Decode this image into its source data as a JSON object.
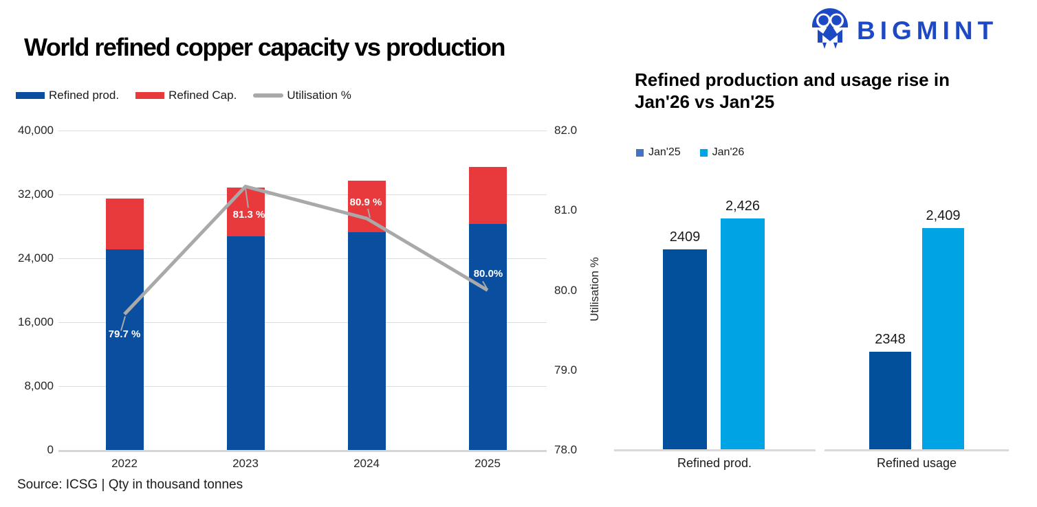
{
  "page": {
    "source_note": "Source: ICSG | Qty in thousand tonnes"
  },
  "brand": {
    "name": "BIGMINT",
    "color": "#1D49C4",
    "icon": "bigmint-people-m-logo"
  },
  "right_chart": {
    "title_line1": "Refined production and usage rise in",
    "title_line2": "Jan'26 vs Jan'25"
  },
  "chart_data": [
    {
      "id": "world-refined-copper-capacity-vs-production",
      "type": "bar",
      "subtype": "stacked-bar-with-line",
      "title": "World refined copper capacity vs production",
      "unit": "thousand tonnes",
      "categories": [
        "2022",
        "2023",
        "2024",
        "2025"
      ],
      "series": [
        {
          "name": "Refined prod.",
          "role": "bar-bottom-segment",
          "color": "#0A4EA0",
          "values": [
            25100,
            26750,
            27250,
            28300
          ]
        },
        {
          "name": "Refined Cap.",
          "role": "bar-top-segment",
          "color": "#E8393C",
          "values": [
            31500,
            32900,
            33700,
            35400
          ],
          "note": "values are total capacity; red segment height = capacity minus production (estimated from chart)"
        },
        {
          "name": "Utilisation %",
          "role": "line",
          "color": "#A9A9A9",
          "axis": "right",
          "values": [
            79.7,
            81.3,
            80.9,
            80.0
          ],
          "point_labels": [
            "79.7 %",
            "81.3 %",
            "80.9 %",
            "80.0%"
          ]
        }
      ],
      "left_axis": {
        "min": 0,
        "max": 40000,
        "ticks": [
          "40,000",
          "32,000",
          "24,000",
          "16,000",
          "8,000",
          "0"
        ]
      },
      "right_axis": {
        "label": "Utilisation %",
        "min": 78.0,
        "max": 82.0,
        "ticks": [
          "82.0",
          "81.0",
          "80.0",
          "79.0",
          "78.0"
        ]
      },
      "grid": true,
      "legend_position": "top-left"
    },
    {
      "id": "refined-production-and-usage-jan26-vs-jan25",
      "type": "bar",
      "subtype": "grouped-bars-two-panels",
      "title": "Refined production and usage rise in Jan'26 vs Jan'25",
      "categories": [
        "Refined prod.",
        "Refined usage"
      ],
      "series": [
        {
          "name": "Jan'25",
          "color": "#02509C",
          "legend_color": "#4472C4",
          "values": [
            2409,
            2348
          ],
          "value_labels": [
            "2409",
            "2348"
          ]
        },
        {
          "name": "Jan'26",
          "color": "#00A3E3",
          "legend_color": "#00A3E3",
          "values": [
            2426,
            2409
          ],
          "value_labels": [
            "2,426",
            "2,409"
          ]
        }
      ],
      "y_baseline": 2300,
      "axis_hidden": true,
      "grid": false,
      "legend_position": "top-left"
    }
  ]
}
